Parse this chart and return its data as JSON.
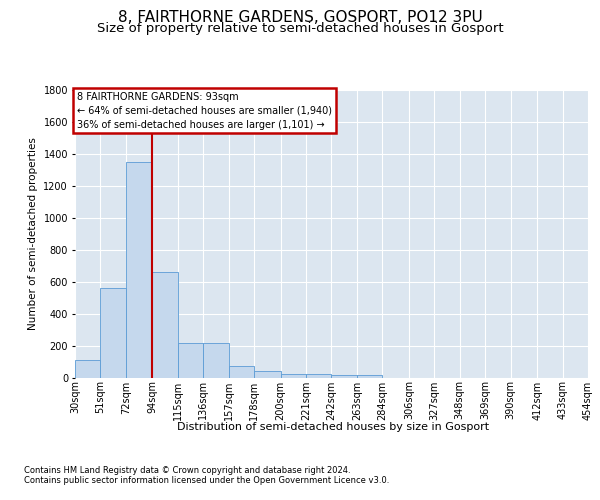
{
  "title_line1": "8, FAIRTHORNE GARDENS, GOSPORT, PO12 3PU",
  "title_line2": "Size of property relative to semi-detached houses in Gosport",
  "xlabel": "Distribution of semi-detached houses by size in Gosport",
  "ylabel": "Number of semi-detached properties",
  "footnote1": "Contains HM Land Registry data © Crown copyright and database right 2024.",
  "footnote2": "Contains public sector information licensed under the Open Government Licence v3.0.",
  "annotation_title": "8 FAIRTHORNE GARDENS: 93sqm",
  "annotation_line1": "← 64% of semi-detached houses are smaller (1,940)",
  "annotation_line2": "36% of semi-detached houses are larger (1,101) →",
  "bins": [
    30,
    51,
    72,
    94,
    115,
    136,
    157,
    178,
    200,
    221,
    242,
    263,
    284,
    306,
    327,
    348,
    369,
    390,
    412,
    433,
    454
  ],
  "bin_labels": [
    "30sqm",
    "51sqm",
    "72sqm",
    "94sqm",
    "115sqm",
    "136sqm",
    "157sqm",
    "178sqm",
    "200sqm",
    "221sqm",
    "242sqm",
    "263sqm",
    "284sqm",
    "306sqm",
    "327sqm",
    "348sqm",
    "369sqm",
    "390sqm",
    "412sqm",
    "433sqm",
    "454sqm"
  ],
  "values": [
    110,
    560,
    1350,
    660,
    215,
    215,
    75,
    40,
    25,
    20,
    15,
    15,
    0,
    0,
    0,
    0,
    0,
    0,
    0,
    0
  ],
  "bar_color": "#c5d8ed",
  "bar_edge_color": "#5b9bd5",
  "vline_x": 94,
  "vline_color": "#c00000",
  "background_color": "#dce6f0",
  "grid_color": "#ffffff",
  "ylim": [
    0,
    1800
  ],
  "yticks": [
    0,
    200,
    400,
    600,
    800,
    1000,
    1200,
    1400,
    1600,
    1800
  ],
  "annotation_box_facecolor": "#ffffff",
  "annotation_box_edgecolor": "#c00000",
  "title1_fontsize": 11,
  "title2_fontsize": 9.5,
  "ylabel_fontsize": 7.5,
  "tick_fontsize": 7,
  "xlabel_fontsize": 8,
  "footnote_fontsize": 6
}
